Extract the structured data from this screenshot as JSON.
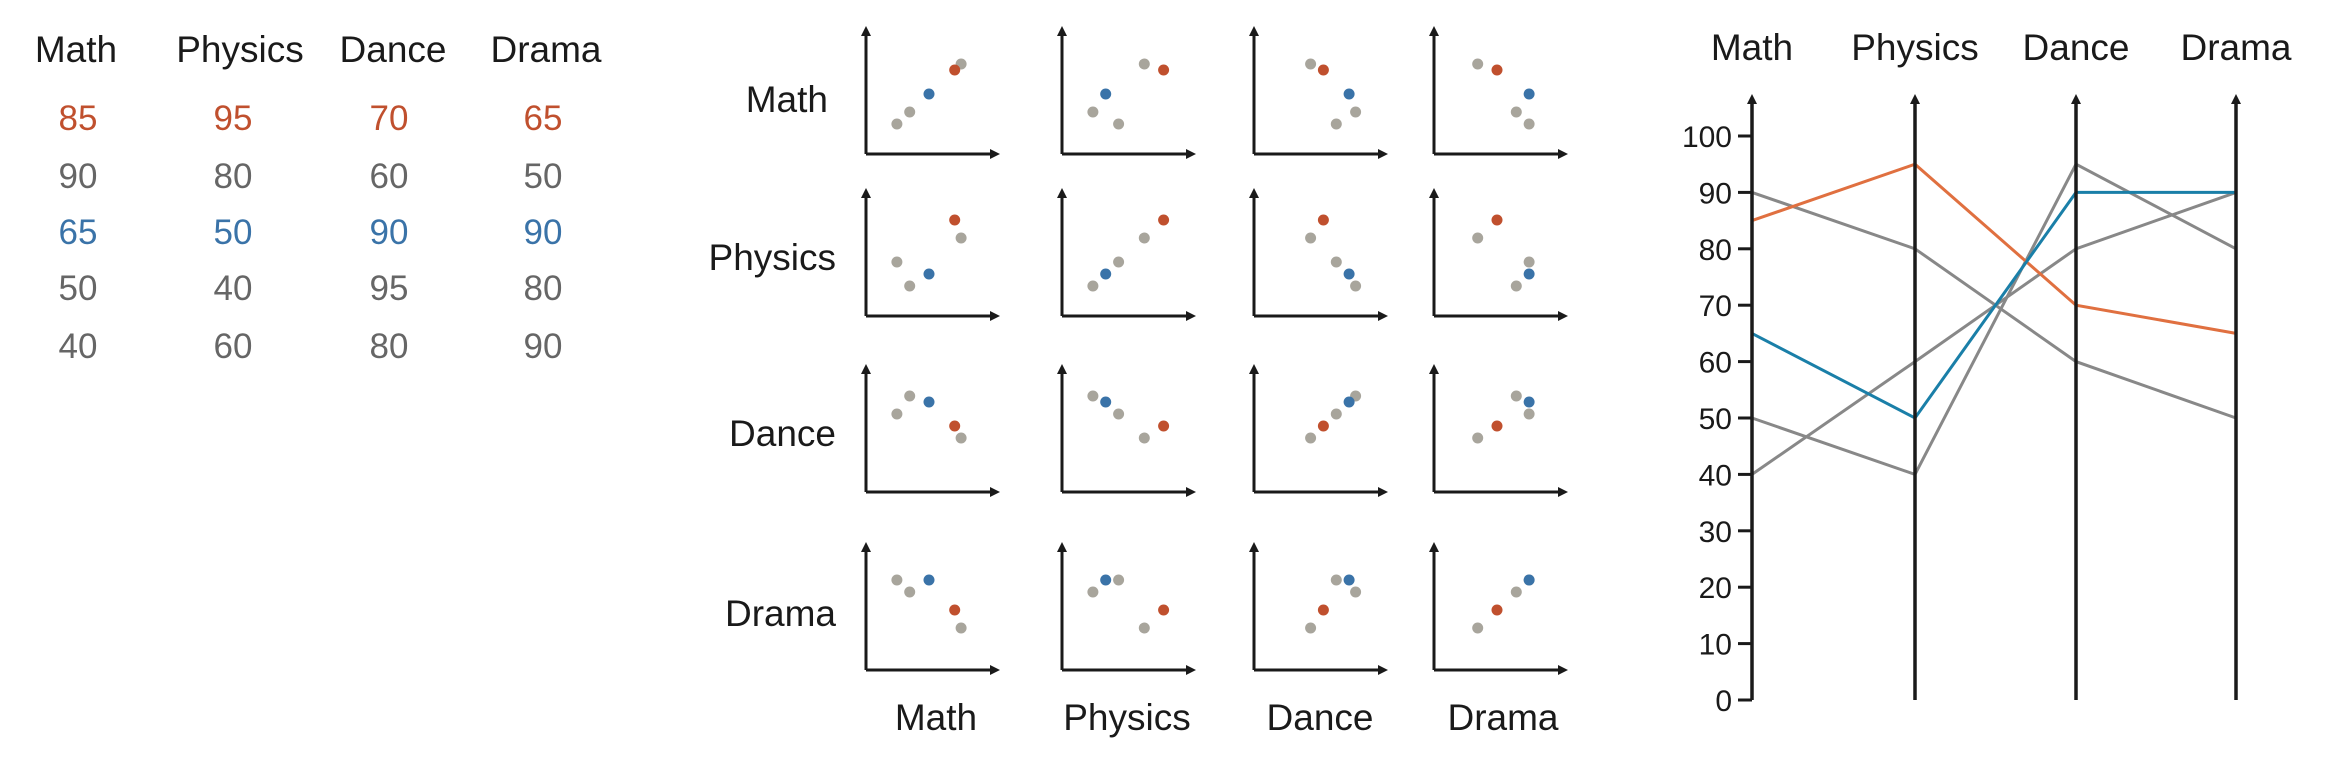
{
  "subjects": [
    "Math",
    "Physics",
    "Dance",
    "Drama"
  ],
  "colors": {
    "highlight_orange": "#c0502e",
    "highlight_blue": "#3a73a8",
    "line_orange": "#e07040",
    "line_blue": "#1a7fa8",
    "gray_text": "#666666",
    "gray_point": "#a8a59c",
    "gray_line": "#888888",
    "axis": "#1a1a1a"
  },
  "table": {
    "headers": [
      "Math",
      "Physics",
      "Dance",
      "Drama"
    ],
    "rows": [
      {
        "values": [
          "85",
          "95",
          "70",
          "65"
        ],
        "highlight": "orange"
      },
      {
        "values": [
          "90",
          "80",
          "60",
          "50"
        ],
        "highlight": "none"
      },
      {
        "values": [
          "65",
          "50",
          "90",
          "90"
        ],
        "highlight": "blue"
      },
      {
        "values": [
          "50",
          "40",
          "95",
          "80"
        ],
        "highlight": "none"
      },
      {
        "values": [
          "40",
          "60",
          "80",
          "90"
        ],
        "highlight": "none"
      }
    ]
  },
  "chart_data": [
    {
      "type": "scatter",
      "chart_kind": "scatterplot-matrix",
      "row_labels": [
        "Math",
        "Physics",
        "Dance",
        "Drama"
      ],
      "column_labels": [
        "Math",
        "Physics",
        "Dance",
        "Drama"
      ],
      "records": [
        {
          "Math": 85,
          "Physics": 95,
          "Dance": 70,
          "Drama": 65,
          "color": "orange"
        },
        {
          "Math": 90,
          "Physics": 80,
          "Dance": 60,
          "Drama": 50,
          "color": "gray"
        },
        {
          "Math": 65,
          "Physics": 50,
          "Dance": 90,
          "Drama": 90,
          "color": "blue"
        },
        {
          "Math": 50,
          "Physics": 40,
          "Dance": 95,
          "Drama": 80,
          "color": "gray"
        },
        {
          "Math": 40,
          "Physics": 60,
          "Dance": 80,
          "Drama": 90,
          "color": "gray"
        }
      ],
      "axis_range": [
        30,
        100
      ],
      "tick_labels": false
    },
    {
      "type": "line",
      "chart_kind": "parallel-coordinates",
      "axes": [
        "Math",
        "Physics",
        "Dance",
        "Drama"
      ],
      "ylim": [
        0,
        100
      ],
      "yticks": [
        "0",
        "10",
        "20",
        "30",
        "40",
        "50",
        "60",
        "70",
        "80",
        "90",
        "100"
      ],
      "series": [
        {
          "values": [
            85,
            95,
            70,
            65
          ],
          "color": "orange"
        },
        {
          "values": [
            90,
            80,
            60,
            50
          ],
          "color": "gray"
        },
        {
          "values": [
            65,
            50,
            90,
            90
          ],
          "color": "blue"
        },
        {
          "values": [
            50,
            40,
            95,
            80
          ],
          "color": "gray"
        },
        {
          "values": [
            40,
            60,
            80,
            90
          ],
          "color": "gray"
        }
      ]
    }
  ]
}
